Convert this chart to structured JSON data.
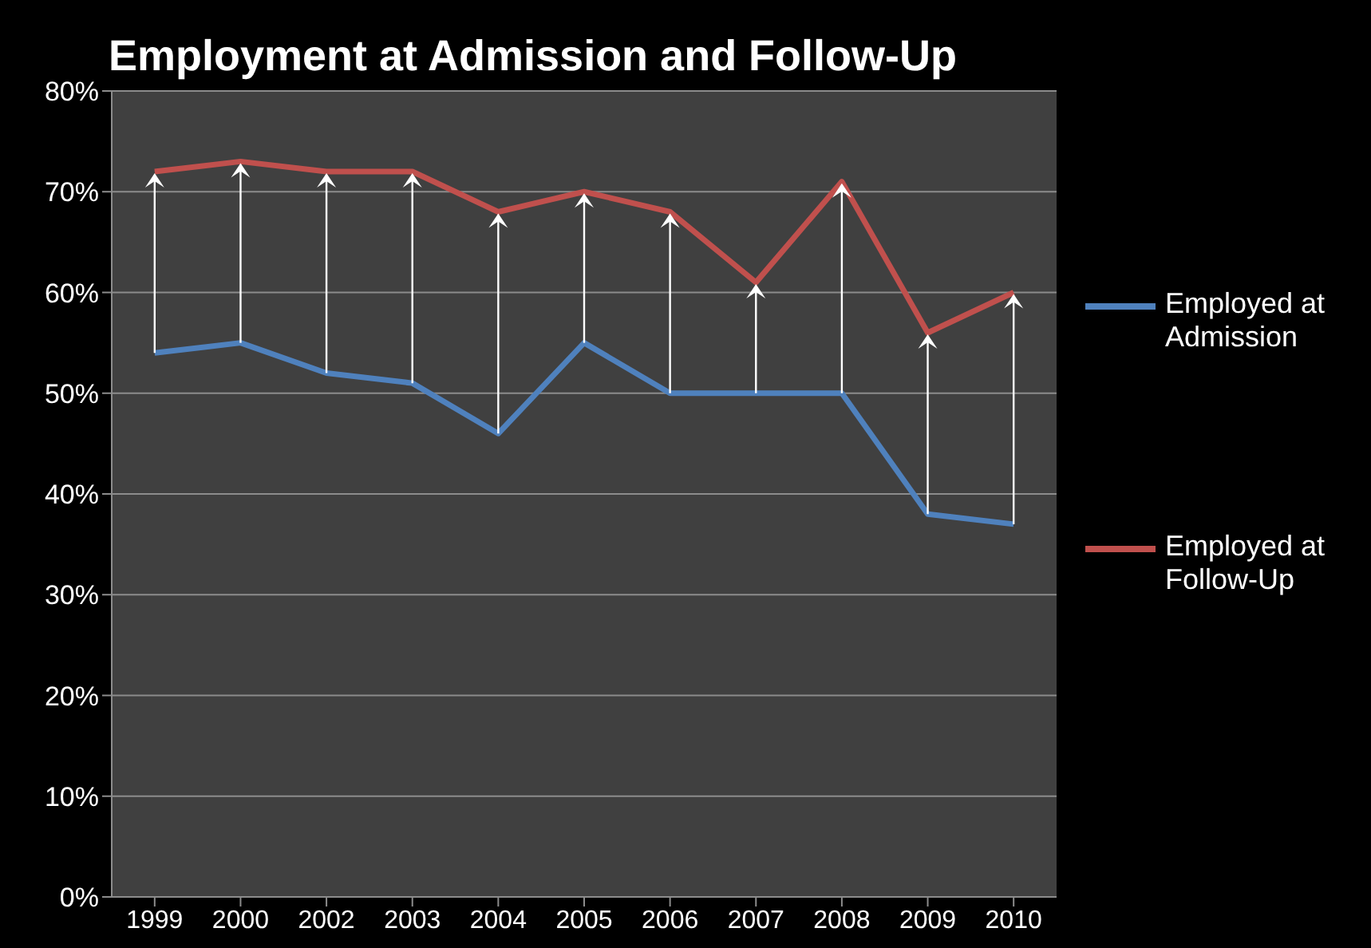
{
  "chart_data": {
    "type": "line",
    "title": "Employment at Admission and Follow-Up",
    "categories": [
      "1999",
      "2000",
      "2002",
      "2003",
      "2004",
      "2005",
      "2006",
      "2007",
      "2008",
      "2009",
      "2010"
    ],
    "series": [
      {
        "name": "Employed at Admission",
        "color": "#4f81bd",
        "values": [
          54,
          55,
          52,
          51,
          46,
          55,
          50,
          50,
          50,
          38,
          37
        ]
      },
      {
        "name": "Employed at Follow-Up",
        "color": "#c0504d",
        "values": [
          72,
          73,
          72,
          72,
          68,
          70,
          68,
          61,
          71,
          56,
          60
        ]
      }
    ],
    "ylim": [
      0,
      80
    ],
    "yticks": [
      {
        "value": 0,
        "label": "0%"
      },
      {
        "value": 10,
        "label": "10%"
      },
      {
        "value": 20,
        "label": "20%"
      },
      {
        "value": 30,
        "label": "30%"
      },
      {
        "value": 40,
        "label": "40%"
      },
      {
        "value": 50,
        "label": "50%"
      },
      {
        "value": 60,
        "label": "60%"
      },
      {
        "value": 70,
        "label": "70%"
      },
      {
        "value": 80,
        "label": "80%"
      }
    ],
    "grid": "y",
    "legend": "right",
    "marker": "none"
  }
}
